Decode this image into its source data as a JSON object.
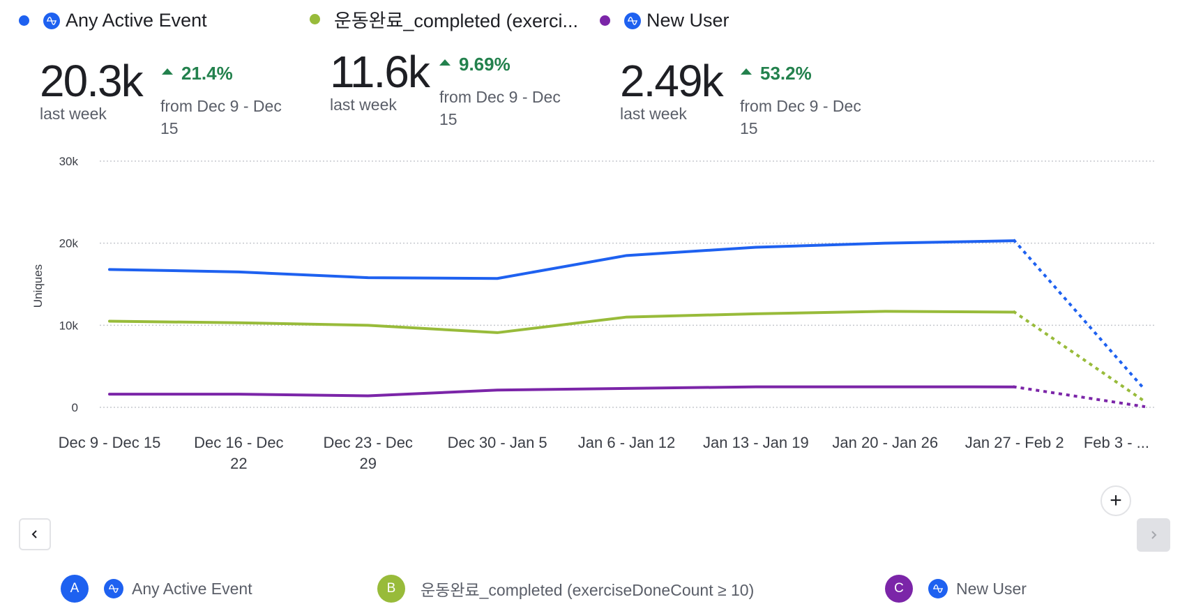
{
  "colors": {
    "series_a": "#1e61f0",
    "series_b": "#98bb3a",
    "series_c": "#7b25a8",
    "positive_delta": "#23814d",
    "amp_icon_bg": "#1e61f0"
  },
  "top_legend": [
    {
      "label": "Any Active Event",
      "has_amp_icon": true
    },
    {
      "label": "운동완료_completed (exerci...",
      "has_amp_icon": false
    },
    {
      "label": "New User",
      "has_amp_icon": true
    }
  ],
  "metrics": [
    {
      "value": "20.3k",
      "period": "last week",
      "delta": "21.4%",
      "from_line1": "from Dec 9 - Dec",
      "from_line2": "15"
    },
    {
      "value": "11.6k",
      "period": "last week",
      "delta": "9.69%",
      "from_line1": "from Dec 9 - Dec",
      "from_line2": "15"
    },
    {
      "value": "2.49k",
      "period": "last week",
      "delta": "53.2%",
      "from_line1": "from Dec 9 - Dec",
      "from_line2": "15"
    }
  ],
  "chart_data": {
    "type": "line",
    "title": "",
    "xlabel": "",
    "ylabel": "Uniques",
    "ylim": [
      0,
      30000
    ],
    "yticks": [
      0,
      10000,
      20000,
      30000
    ],
    "ytick_labels": [
      "0",
      "10k",
      "20k",
      "30k"
    ],
    "grid": true,
    "categories": [
      [
        "Dec 9 - Dec 15"
      ],
      [
        "Dec 16 - Dec",
        "22"
      ],
      [
        "Dec 23 - Dec",
        "29"
      ],
      [
        "Dec 30 - Jan 5"
      ],
      [
        "Jan 6 - Jan 12"
      ],
      [
        "Jan 13 - Jan 19"
      ],
      [
        "Jan 20 - Jan 26"
      ],
      [
        "Jan 27 - Feb 2"
      ],
      [
        "Feb 3 - ..."
      ]
    ],
    "incomplete_last_period": true,
    "series": [
      {
        "name": "Any Active Event",
        "letter": "A",
        "color": "#1e61f0",
        "values": [
          16800,
          16500,
          15800,
          15700,
          18500,
          19500,
          20000,
          20300,
          2300
        ]
      },
      {
        "name": "운동완료_completed (exerciseDoneCount ≥ 10)",
        "letter": "B",
        "color": "#98bb3a",
        "values": [
          10500,
          10300,
          10000,
          9100,
          11000,
          11400,
          11700,
          11600,
          800
        ]
      },
      {
        "name": "New User",
        "letter": "C",
        "color": "#7b25a8",
        "values": [
          1600,
          1600,
          1400,
          2100,
          2300,
          2500,
          2500,
          2490,
          100
        ]
      }
    ]
  },
  "controls": {
    "add_label": "+",
    "prev_label": "previous",
    "next_label": "next"
  },
  "bottom_legend": [
    {
      "letter": "A",
      "label": "Any Active Event"
    },
    {
      "letter": "B",
      "label": "운동완료_completed (exerciseDoneCount ≥ 10)"
    },
    {
      "letter": "C",
      "label": "New User"
    }
  ]
}
